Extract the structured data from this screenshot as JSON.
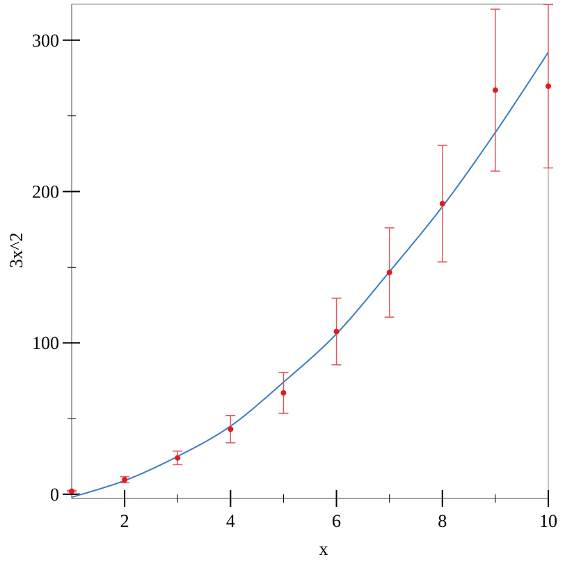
{
  "chart_data": {
    "type": "scatter",
    "xlabel": "x",
    "ylabel": "3x^2",
    "x": [
      1,
      2,
      3,
      4,
      5,
      6,
      7,
      8,
      9,
      10
    ],
    "series": [
      {
        "type": "line",
        "color": "#3a7dbf",
        "values": [
          -2,
          9,
          25,
          45,
          74,
          106,
          147,
          190,
          239,
          292
        ]
      },
      {
        "type": "scatter",
        "color": "#e31a1c",
        "error_color": "#e5575a",
        "values": [
          2,
          9.6,
          24,
          43,
          67,
          107.5,
          146.5,
          192,
          267,
          269.6
        ],
        "errors": [
          0.5,
          2,
          4.5,
          9,
          13.5,
          22,
          29.5,
          38.5,
          53.5,
          54
        ]
      }
    ],
    "xlim": [
      1,
      10
    ],
    "ylim": [
      -2.8,
      323.8
    ],
    "xticks": [
      2,
      4,
      6,
      8,
      10
    ],
    "xminorticks": [
      3,
      5,
      7,
      9
    ],
    "yticks": [
      0,
      100,
      200,
      300
    ],
    "yminorticks": [
      50,
      150,
      250
    ]
  }
}
